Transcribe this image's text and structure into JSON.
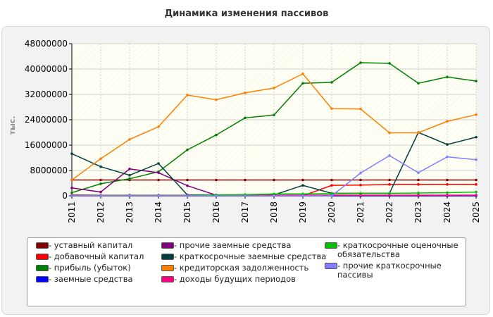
{
  "title": "Динамика изменения пассивов",
  "ylabel": "тыс.",
  "colors": {
    "plot_bg": "#fffff5",
    "grid": "#d0d0d0",
    "axis": "#000000"
  },
  "chart_data": {
    "type": "line",
    "title": "Динамика изменения пассивов",
    "ylabel": "тыс.",
    "xlabel": "",
    "categories": [
      "2011",
      "2012",
      "2013",
      "2014",
      "2015",
      "2016",
      "2017",
      "2018",
      "2019",
      "2020",
      "2021",
      "2022",
      "2023",
      "2024",
      "2025"
    ],
    "ylim": [
      0,
      48000000
    ],
    "yticks": [
      0,
      8000000,
      16000000,
      24000000,
      32000000,
      40000000,
      48000000
    ],
    "ytick_labels": [
      "0",
      "8000000",
      "16000000",
      "24000000",
      "32000000",
      "40000000",
      "48000000"
    ],
    "grid": true,
    "legend_position": "bottom",
    "series": [
      {
        "name": "- уставный капитал",
        "color": "#7f0000",
        "values": [
          5000000,
          5000000,
          5000000,
          5000000,
          5000000,
          5000000,
          5000000,
          5000000,
          5000000,
          5000000,
          5000000,
          5000000,
          5000000,
          5000000,
          5000000
        ]
      },
      {
        "name": "- добавочный капитал",
        "color": "#ff0000",
        "values": [
          0,
          0,
          0,
          0,
          0,
          0,
          0,
          0,
          0,
          3300000,
          3400000,
          3600000,
          3600000,
          3600000,
          3600000
        ]
      },
      {
        "name": "- прибыль (убыток)",
        "color": "#007f00",
        "values": [
          1000000,
          3800000,
          5400000,
          7600000,
          14500000,
          19200000,
          24600000,
          25500000,
          35500000,
          35800000,
          42000000,
          41800000,
          35500000,
          37500000,
          36200000
        ]
      },
      {
        "name": "- заемные средства",
        "color": "#0000ff",
        "values": [
          0,
          0,
          0,
          0,
          0,
          0,
          0,
          0,
          0,
          0,
          0,
          0,
          0,
          0,
          0
        ]
      },
      {
        "name": "- прочие заемные средства",
        "color": "#7f007f",
        "values": [
          2500000,
          1200000,
          8500000,
          7300000,
          3200000,
          200000,
          200000,
          200000,
          200000,
          200000,
          200000,
          200000,
          200000,
          200000,
          200000
        ]
      },
      {
        "name": "- краткосрочные заемные средства",
        "color": "#004040",
        "values": [
          13300000,
          9200000,
          6500000,
          10200000,
          300000,
          300000,
          300000,
          300000,
          3300000,
          800000,
          800000,
          800000,
          20000000,
          16200000,
          18500000
        ]
      },
      {
        "name": "- кредиторская задолженность",
        "color": "#ff7f00",
        "values": [
          5000000,
          11700000,
          17800000,
          21800000,
          31800000,
          30300000,
          32500000,
          34000000,
          38500000,
          27500000,
          27400000,
          19900000,
          19900000,
          23500000,
          25600000
        ]
      },
      {
        "name": "- доходы будущих периодов",
        "color": "#ff007f",
        "values": [
          300000,
          200000,
          200000,
          200000,
          200000,
          200000,
          200000,
          200000,
          200000,
          200000,
          200000,
          200000,
          200000,
          200000,
          200000
        ]
      },
      {
        "name": "- краткосрочные оценочные обязательства",
        "color": "#00c000",
        "values": [
          100000,
          100000,
          100000,
          100000,
          100000,
          300000,
          400000,
          600000,
          600000,
          700000,
          800000,
          800000,
          900000,
          1000000,
          1200000
        ]
      },
      {
        "name": "- прочие краткосрочные пассивы",
        "color": "#7f7fff",
        "values": [
          0,
          0,
          0,
          0,
          0,
          0,
          0,
          0,
          0,
          0,
          7200000,
          12700000,
          7300000,
          12300000,
          11400000
        ]
      }
    ]
  },
  "legend": {
    "columns": [
      [
        {
          "label": "- уставный капитал",
          "color": "#7f0000"
        },
        {
          "label": "- добавочный капитал",
          "color": "#ff0000"
        },
        {
          "label": "- прибыль (убыток)",
          "color": "#007f00"
        },
        {
          "label": "- заемные средства",
          "color": "#0000ff"
        }
      ],
      [
        {
          "label": "- прочие заемные средства",
          "color": "#7f007f"
        },
        {
          "label": "- краткосрочные заемные средства",
          "color": "#004040"
        },
        {
          "label": "- кредиторская задолженность",
          "color": "#ff7f00"
        },
        {
          "label": "- доходы будущих периодов",
          "color": "#ff007f"
        }
      ],
      [
        {
          "label": "- краткосрочные оценочные обязательства",
          "color": "#00c000"
        },
        {
          "label": "- прочие краткосрочные пассивы",
          "color": "#7f7fff"
        }
      ]
    ]
  }
}
